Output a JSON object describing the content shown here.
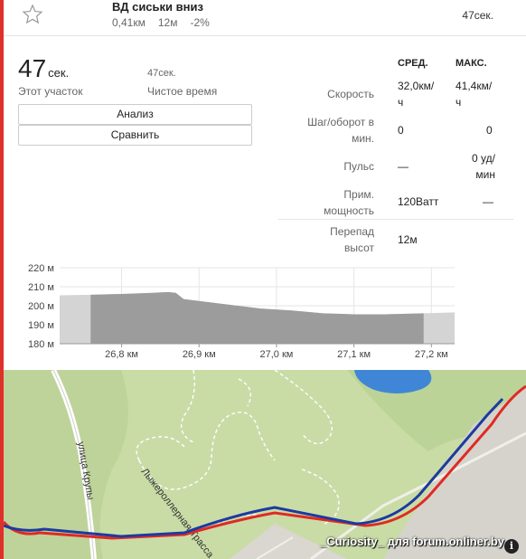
{
  "segment": {
    "name": "ВД сиськи вниз",
    "distance": "0,41км",
    "elevation": "12м",
    "grade": "-2%",
    "time": "47сек."
  },
  "summary": {
    "time_value": "47",
    "time_unit": "сек.",
    "time_label": "Этот участок",
    "moving_time_value": "47сек.",
    "moving_time_label": "Чистое время",
    "analyze_button": "Анализ",
    "compare_button": "Сравнить"
  },
  "stats": {
    "col_avg": "СРЕД.",
    "col_max": "МАКС.",
    "rows": [
      {
        "label": "Скорость",
        "avg": "32,0км/ч",
        "max": "41,4км/ч"
      },
      {
        "label": "Шаг/оборот в мин.",
        "avg": "0",
        "max": "0"
      },
      {
        "label": "Пульс",
        "avg": "—",
        "max": "0 уд/мин"
      },
      {
        "label": "Прим. мощность",
        "avg": "120Ватт",
        "max": "—"
      },
      {
        "label": "Перепад высот",
        "avg": "12м",
        "max": ""
      }
    ]
  },
  "chart_data": {
    "type": "area",
    "title": "",
    "xlabel": "",
    "ylabel": "",
    "y_ticks": [
      "220 м",
      "210 м",
      "200 м",
      "190 м",
      "180 м"
    ],
    "x_ticks": [
      "26,8 км",
      "26,9 км",
      "27,0 км",
      "27,1 км",
      "27,2 км"
    ],
    "ylim": [
      180,
      220
    ],
    "xlim": [
      26.72,
      27.23
    ],
    "highlight_range": [
      26.76,
      27.19
    ],
    "grid": true,
    "series": [
      {
        "x": [
          26.72,
          26.76,
          26.8,
          26.84,
          26.86,
          26.87,
          26.88,
          26.9,
          26.94,
          26.98,
          27.02,
          27.06,
          27.1,
          27.14,
          27.19,
          27.23
        ],
        "y": [
          205.5,
          205.8,
          206.2,
          206.8,
          207.2,
          206.8,
          203.5,
          202.5,
          200.5,
          198.5,
          197.5,
          196.0,
          195.5,
          195.5,
          196.0,
          196.5
        ]
      }
    ]
  },
  "map": {
    "street_label": "улица Крупы",
    "trail_label": "Лыжероллерная Трасса",
    "watermark": "_Curiosity_ для forum.onliner.by",
    "info_label": "i",
    "route_red_color": "#e02a24",
    "route_blue_color": "#1d3aa0"
  }
}
